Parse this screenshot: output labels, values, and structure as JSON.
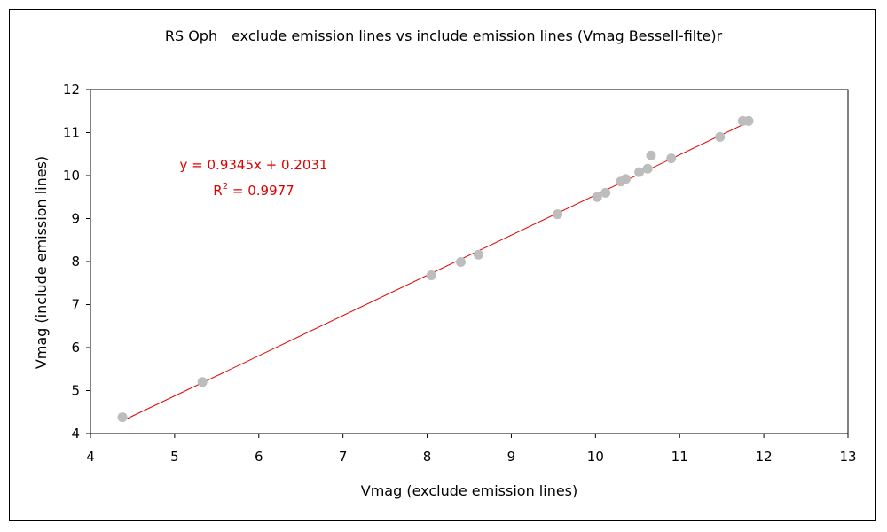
{
  "chart_data": {
    "type": "scatter",
    "title": "RS Oph　exclude emission lines  vs  include emission lines (Vmag Bessell-filte)r",
    "xlabel": "Vmag (exclude emission lines)",
    "ylabel": "Vmag (include emission lines)",
    "xlim": [
      4,
      13
    ],
    "ylim": [
      4,
      12
    ],
    "x_ticks": [
      "4",
      "5",
      "6",
      "7",
      "8",
      "9",
      "10",
      "11",
      "12",
      "13"
    ],
    "y_ticks": [
      "4",
      "5",
      "6",
      "7",
      "8",
      "9",
      "10",
      "11",
      "12"
    ],
    "grid": false,
    "series": [
      {
        "color": "#bdbdbd",
        "points": [
          {
            "x": 4.38,
            "y": 4.38
          },
          {
            "x": 5.33,
            "y": 5.2
          },
          {
            "x": 8.05,
            "y": 7.68
          },
          {
            "x": 8.4,
            "y": 7.99
          },
          {
            "x": 8.61,
            "y": 8.16
          },
          {
            "x": 9.55,
            "y": 9.1
          },
          {
            "x": 10.02,
            "y": 9.5
          },
          {
            "x": 10.12,
            "y": 9.6
          },
          {
            "x": 10.3,
            "y": 9.86
          },
          {
            "x": 10.36,
            "y": 9.92
          },
          {
            "x": 10.52,
            "y": 10.08
          },
          {
            "x": 10.62,
            "y": 10.16
          },
          {
            "x": 10.66,
            "y": 10.47
          },
          {
            "x": 10.9,
            "y": 10.4
          },
          {
            "x": 11.48,
            "y": 10.9
          },
          {
            "x": 11.75,
            "y": 11.27
          },
          {
            "x": 11.82,
            "y": 11.27
          }
        ]
      }
    ],
    "trendline": {
      "color": "#e00000",
      "slope": 0.9345,
      "intercept": 0.2031,
      "x_range": [
        4.38,
        11.82
      ],
      "equation_text": "y = 0.9345x + 0.2031",
      "r2_label": "R",
      "r2_superscript": "2",
      "r2_value_text": " = 0.9977"
    }
  }
}
